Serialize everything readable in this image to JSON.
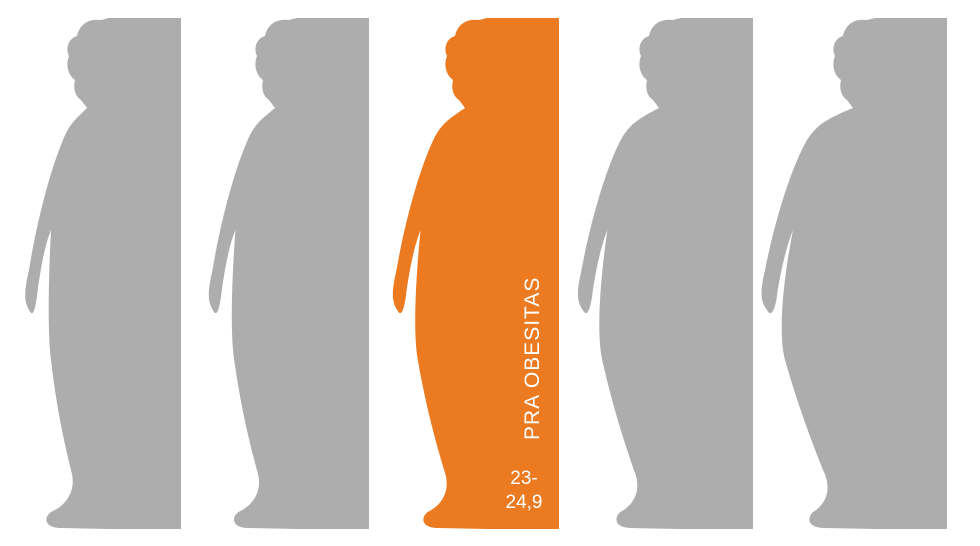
{
  "colors": {
    "inactive": "#adadad",
    "active": "#ec7a21",
    "label_text": "#ffffff",
    "background": "#ffffff"
  },
  "figures": [
    {
      "active": false,
      "width_factor": 0.0
    },
    {
      "active": false,
      "width_factor": 0.15
    },
    {
      "active": true,
      "width_factor": 0.35
    },
    {
      "active": false,
      "width_factor": 0.65
    },
    {
      "active": false,
      "width_factor": 1.0
    }
  ],
  "active_category": {
    "label": "PRA OBESITAS",
    "range_line1": "23-",
    "range_line2": "24,9"
  }
}
